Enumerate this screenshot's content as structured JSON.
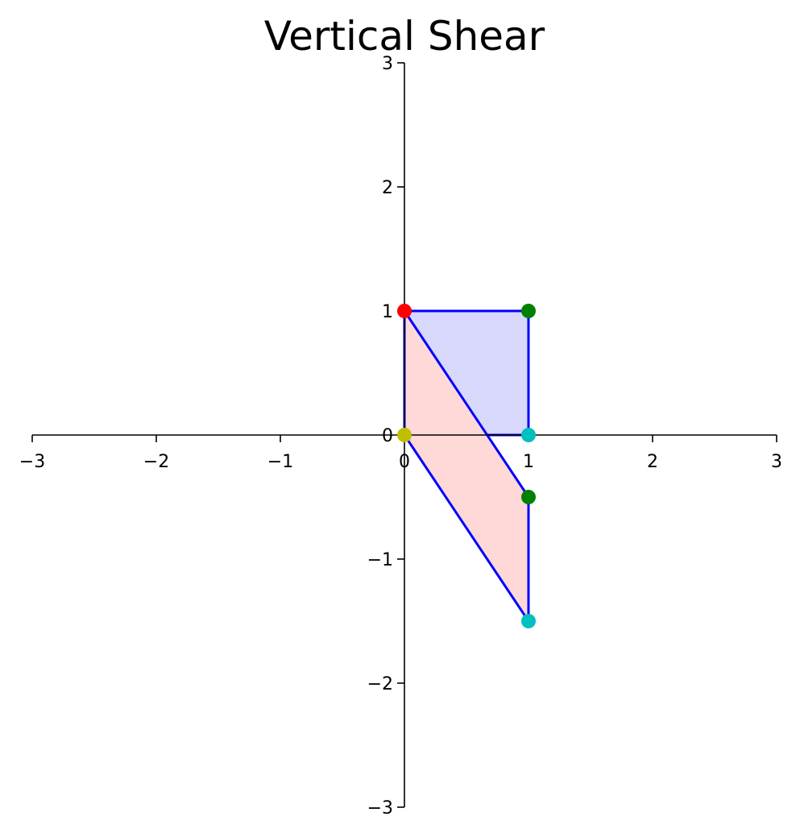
{
  "chart_data": {
    "type": "scatter",
    "title": "Vertical Shear",
    "xlabel": "",
    "ylabel": "",
    "xlim": [
      -3,
      3
    ],
    "ylim": [
      -3,
      3
    ],
    "xticks": [
      -3,
      -2,
      -1,
      0,
      1,
      2,
      3
    ],
    "yticks": [
      -3,
      -2,
      -1,
      0,
      1,
      2,
      3
    ],
    "xtick_labels": [
      "−3",
      "−2",
      "−1",
      "0",
      "1",
      "2",
      "3"
    ],
    "ytick_labels": [
      "−3",
      "−2",
      "−1",
      "0",
      "1",
      "2",
      "3"
    ],
    "grid": false,
    "spines": "centered at origin",
    "series": [
      {
        "fill": "#d8d8fc",
        "edge": "#0000ff",
        "points": [
          [
            0,
            0
          ],
          [
            1,
            0
          ],
          [
            1,
            1
          ],
          [
            0,
            1
          ]
        ]
      },
      {
        "fill": "#ffd8d8",
        "edge": "#0000ff",
        "points": [
          [
            0,
            0
          ],
          [
            1,
            -1.5
          ],
          [
            1,
            -0.5
          ],
          [
            0,
            1
          ]
        ]
      }
    ],
    "markers": [
      {
        "x": 0,
        "y": 1,
        "color": "#ff0000"
      },
      {
        "x": 1,
        "y": 1,
        "color": "#008000"
      },
      {
        "x": 1,
        "y": 0,
        "color": "#00bfbf"
      },
      {
        "x": 0,
        "y": 0,
        "color": "#bfbf00"
      },
      {
        "x": 1,
        "y": -0.5,
        "color": "#008000"
      },
      {
        "x": 1,
        "y": -1.5,
        "color": "#00bfbf"
      }
    ]
  }
}
